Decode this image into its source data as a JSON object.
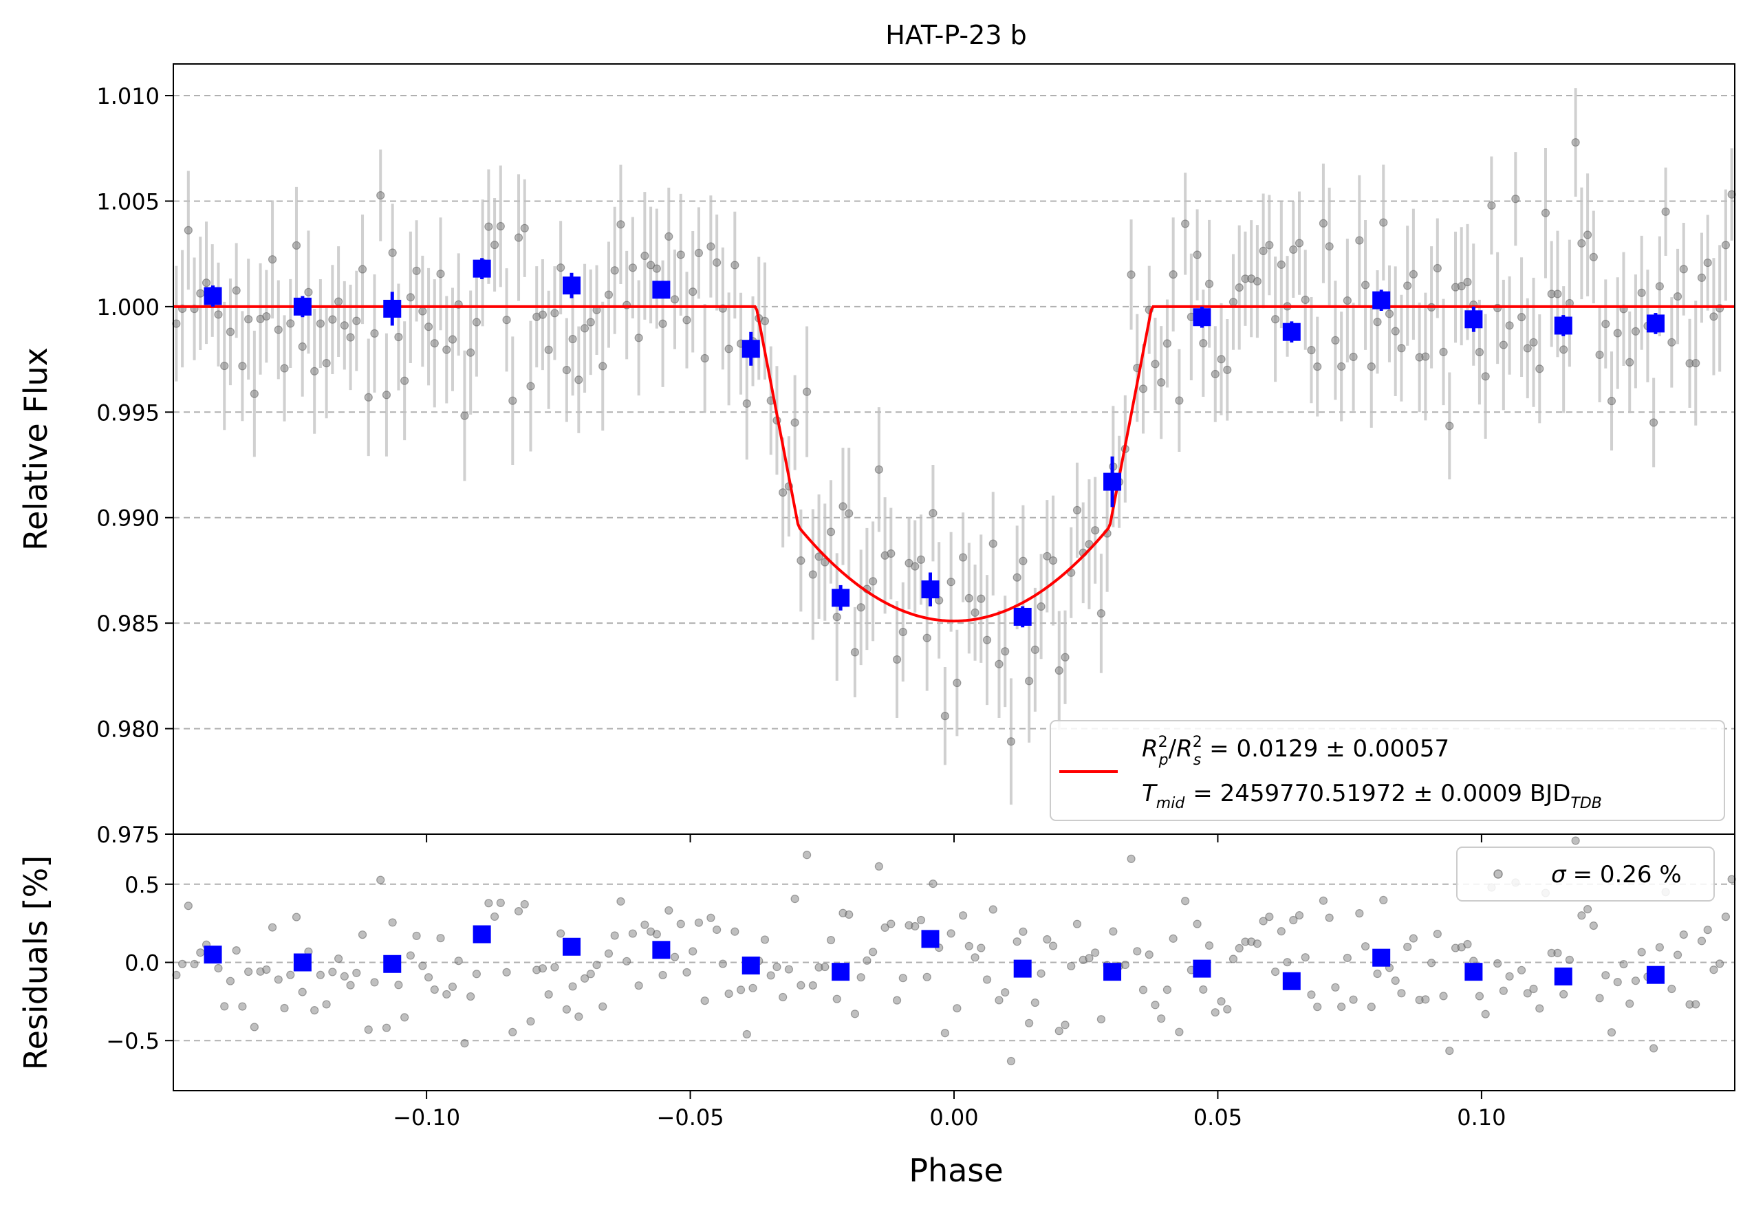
{
  "chart_data": [
    {
      "type": "scatter",
      "panel": "top",
      "title": "HAT-P-23 b",
      "xlabel": "",
      "ylabel": "Relative Flux",
      "xlim": [
        -0.148,
        0.148
      ],
      "ylim": [
        0.975,
        1.0115
      ],
      "x_ticks": [
        -0.1,
        -0.05,
        0.0,
        0.05,
        0.1
      ],
      "y_ticks": [
        {
          "value": 0.975,
          "label": "0.975"
        },
        {
          "value": 0.98,
          "label": "0.980"
        },
        {
          "value": 0.985,
          "label": "0.985"
        },
        {
          "value": 0.99,
          "label": "0.990"
        },
        {
          "value": 0.995,
          "label": "0.995"
        },
        {
          "value": 1.0,
          "label": "1.000"
        },
        {
          "value": 1.005,
          "label": "1.005"
        },
        {
          "value": 1.01,
          "label": "1.010"
        }
      ],
      "grid": "horizontal-dashed",
      "legend_position": "bottom-right",
      "model": {
        "color": "#ff0000",
        "legend_line1": "= 0.0129 ± 0.00057",
        "legend_line2": "= 2459770.51972 ± 0.0009 BJD",
        "legend_line1_symbol": {
          "r": "R",
          "p": "p",
          "two": "2",
          "slash": "/",
          "s": "s"
        },
        "legend_line2_symbol": {
          "t": "T",
          "mid": "mid",
          "tdb": "TDB"
        },
        "depth": 0.0149,
        "t14_half": 0.0375,
        "t23_half": 0.0295,
        "baseline": 1.0
      },
      "binned": {
        "color": "#0000ff",
        "x": [
          -0.1405,
          -0.1235,
          -0.1065,
          -0.0895,
          -0.0725,
          -0.0555,
          -0.0385,
          -0.0215,
          -0.0045,
          0.013,
          0.03,
          0.047,
          0.064,
          0.081,
          0.0985,
          0.1155,
          0.133
        ],
        "y": [
          1.0005,
          1.0,
          0.9999,
          1.0018,
          1.001,
          1.0008,
          0.998,
          0.9862,
          0.9866,
          0.9853,
          0.9917,
          0.9995,
          0.9988,
          1.0003,
          0.9994,
          0.9991,
          0.9992
        ],
        "err": [
          0.0005,
          0.0005,
          0.0008,
          0.0005,
          0.0006,
          0.0004,
          0.0008,
          0.0006,
          0.0008,
          0.0005,
          0.0012,
          0.0005,
          0.0005,
          0.0005,
          0.0006,
          0.0005,
          0.0005
        ]
      },
      "raw": {
        "color": "#808080",
        "count": 260,
        "x_range": [
          -0.148,
          0.148
        ],
        "scatter_sigma": 0.0026,
        "err_typical": 0.0026
      }
    },
    {
      "type": "scatter",
      "panel": "bottom",
      "xlabel": "Phase",
      "ylabel": "Residuals [%]",
      "xlim": [
        -0.148,
        0.148
      ],
      "ylim": [
        -0.82,
        0.82
      ],
      "x_ticks": [
        {
          "value": -0.1,
          "label": "−0.10"
        },
        {
          "value": -0.05,
          "label": "−0.05"
        },
        {
          "value": 0.0,
          "label": "0.00"
        },
        {
          "value": 0.05,
          "label": "0.05"
        },
        {
          "value": 0.1,
          "label": "0.10"
        }
      ],
      "y_ticks": [
        {
          "value": -0.5,
          "label": "−0.5"
        },
        {
          "value": 0.0,
          "label": "0.0"
        },
        {
          "value": 0.5,
          "label": "0.5"
        }
      ],
      "grid": "horizontal-dashed",
      "legend_position": "top-right",
      "legend_label": "= 0.26 %",
      "legend_symbol": "σ",
      "binned": {
        "color": "#0000ff",
        "x": [
          -0.1405,
          -0.1235,
          -0.1065,
          -0.0895,
          -0.0725,
          -0.0555,
          -0.0385,
          -0.0215,
          -0.0045,
          0.013,
          0.03,
          0.047,
          0.064,
          0.081,
          0.0985,
          0.1155,
          0.133
        ],
        "y": [
          0.05,
          0.0,
          -0.01,
          0.18,
          0.1,
          0.08,
          -0.02,
          -0.06,
          0.15,
          -0.04,
          -0.06,
          -0.04,
          -0.12,
          0.03,
          -0.06,
          -0.09,
          -0.08
        ]
      },
      "raw": {
        "color": "#808080",
        "count": 260,
        "sigma": 0.26
      }
    }
  ]
}
